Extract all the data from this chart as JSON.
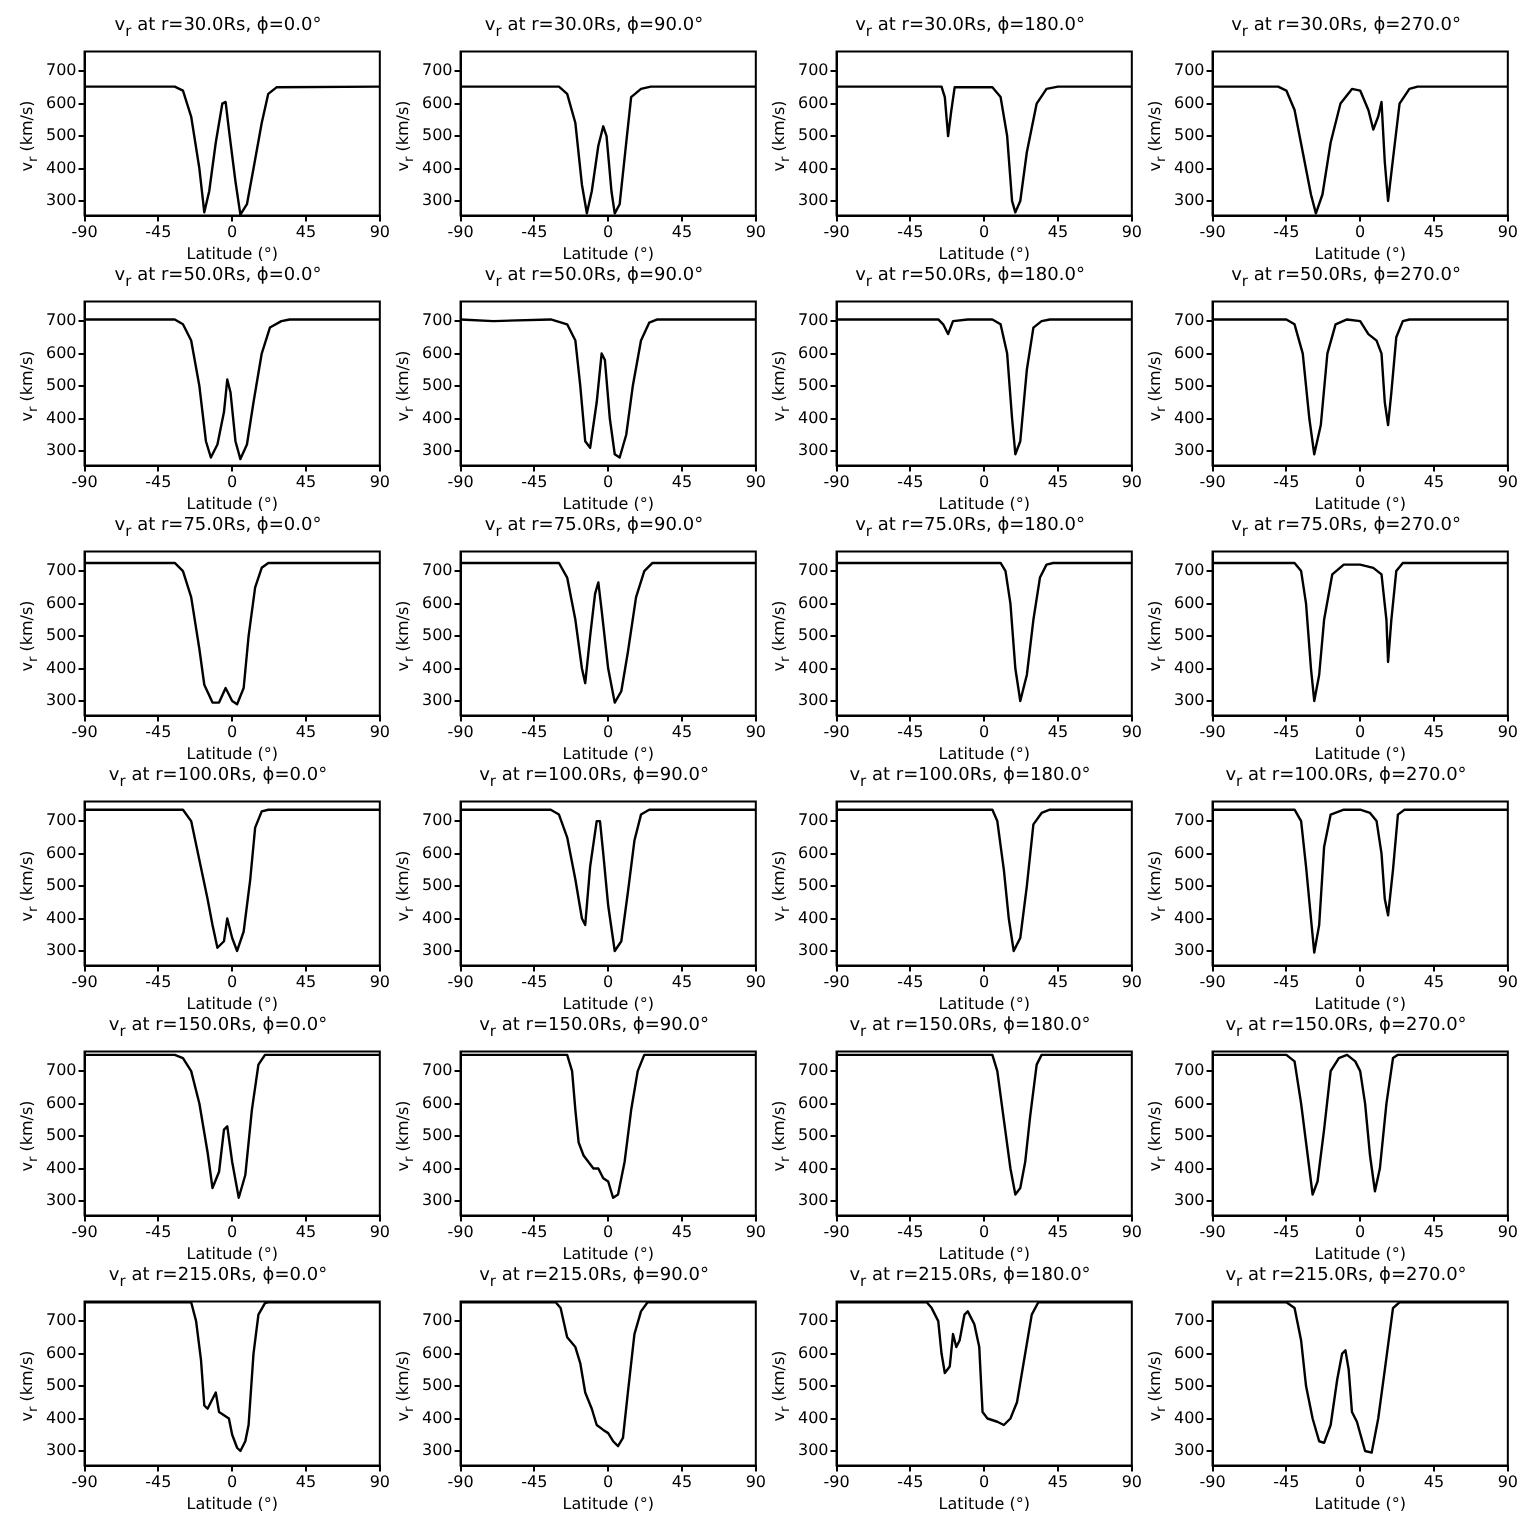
{
  "chart_data": [
    {
      "type": "line",
      "title": "v$_{r}$ at r=30.0Rs, ϕ=0.0°",
      "xlabel": "Latitude (°)",
      "ylabel": "v$_{r}$ (km/s)",
      "color": "#000000",
      "xlim": [
        -90,
        90
      ],
      "xticks": [
        -90,
        -45,
        0,
        45,
        90
      ],
      "ylim": [
        255,
        760
      ],
      "yticks": [
        300,
        400,
        500,
        600,
        700
      ],
      "x": [
        -90,
        -35,
        -30,
        -25,
        -20,
        -17,
        -14,
        -10,
        -6,
        -4,
        -2,
        2,
        5,
        9,
        13,
        18,
        22,
        27,
        90
      ],
      "values": [
        652,
        652,
        640,
        560,
        400,
        265,
        330,
        480,
        600,
        605,
        520,
        360,
        258,
        290,
        400,
        540,
        630,
        650,
        652
      ]
    },
    {
      "type": "line",
      "title": "v$_{r}$ at r=30.0Rs, ϕ=90.0°",
      "xlabel": "Latitude (°)",
      "ylabel": "v$_{r}$ (km/s)",
      "color": "#000000",
      "xlim": [
        -90,
        90
      ],
      "xticks": [
        -90,
        -45,
        0,
        45,
        90
      ],
      "ylim": [
        255,
        760
      ],
      "yticks": [
        300,
        400,
        500,
        600,
        700
      ],
      "x": [
        -90,
        -30,
        -25,
        -20,
        -16,
        -13,
        -10,
        -6,
        -3,
        -1,
        2,
        4,
        7,
        11,
        14,
        20,
        26,
        90
      ],
      "values": [
        652,
        652,
        630,
        540,
        350,
        262,
        330,
        470,
        530,
        500,
        330,
        262,
        290,
        480,
        620,
        645,
        652,
        652
      ]
    },
    {
      "type": "line",
      "title": "v$_{r}$ at r=30.0Rs, ϕ=180.0°",
      "xlabel": "Latitude (°)",
      "ylabel": "v$_{r}$ (km/s)",
      "color": "#000000",
      "xlim": [
        -90,
        90
      ],
      "xticks": [
        -90,
        -45,
        0,
        45,
        90
      ],
      "ylim": [
        255,
        760
      ],
      "yticks": [
        300,
        400,
        500,
        600,
        700
      ],
      "x": [
        -90,
        -26,
        -24,
        -22,
        -20,
        -18,
        5,
        10,
        14,
        17,
        19,
        22,
        26,
        32,
        38,
        45,
        90
      ],
      "values": [
        652,
        652,
        620,
        500,
        580,
        650,
        650,
        620,
        500,
        300,
        265,
        300,
        450,
        600,
        645,
        652,
        652
      ]
    },
    {
      "type": "line",
      "title": "v$_{r}$ at r=30.0Rs, ϕ=270.0°",
      "xlabel": "Latitude (°)",
      "ylabel": "v$_{r}$ (km/s)",
      "color": "#000000",
      "xlim": [
        -90,
        90
      ],
      "xticks": [
        -90,
        -45,
        0,
        45,
        90
      ],
      "ylim": [
        255,
        760
      ],
      "yticks": [
        300,
        400,
        500,
        600,
        700
      ],
      "x": [
        -90,
        -50,
        -45,
        -40,
        -35,
        -30,
        -27,
        -23,
        -18,
        -12,
        -5,
        0,
        5,
        8,
        11,
        13,
        15,
        17,
        20,
        24,
        30,
        35,
        90
      ],
      "values": [
        652,
        652,
        640,
        580,
        450,
        320,
        262,
        320,
        480,
        600,
        645,
        640,
        580,
        520,
        560,
        605,
        420,
        300,
        430,
        600,
        645,
        652,
        652
      ]
    },
    {
      "type": "line",
      "title": "v$_{r}$ at r=50.0Rs, ϕ=0.0°",
      "xlabel": "Latitude (°)",
      "ylabel": "v$_{r}$ (km/s)",
      "color": "#000000",
      "xlim": [
        -90,
        90
      ],
      "xticks": [
        -90,
        -45,
        0,
        45,
        90
      ],
      "ylim": [
        255,
        760
      ],
      "yticks": [
        300,
        400,
        500,
        600,
        700
      ],
      "x": [
        -90,
        -35,
        -30,
        -25,
        -20,
        -16,
        -13,
        -9,
        -5,
        -3,
        -1,
        2,
        5,
        9,
        13,
        18,
        23,
        30,
        35,
        90
      ],
      "values": [
        705,
        705,
        690,
        640,
        500,
        330,
        280,
        320,
        420,
        520,
        480,
        330,
        275,
        320,
        450,
        600,
        680,
        700,
        705,
        705
      ]
    },
    {
      "type": "line",
      "title": "v$_{r}$ at r=50.0Rs, ϕ=90.0°",
      "xlabel": "Latitude (°)",
      "ylabel": "v$_{r}$ (km/s)",
      "color": "#000000",
      "xlim": [
        -90,
        90
      ],
      "xticks": [
        -90,
        -45,
        0,
        45,
        90
      ],
      "ylim": [
        255,
        760
      ],
      "yticks": [
        300,
        400,
        500,
        600,
        700
      ],
      "x": [
        -90,
        -70,
        -35,
        -25,
        -20,
        -17,
        -14,
        -11,
        -7,
        -4,
        -2,
        1,
        4,
        7,
        11,
        15,
        20,
        25,
        30,
        90
      ],
      "values": [
        705,
        700,
        705,
        690,
        640,
        500,
        330,
        310,
        450,
        600,
        580,
        400,
        290,
        280,
        350,
        500,
        640,
        695,
        705,
        705
      ]
    },
    {
      "type": "line",
      "title": "v$_{r}$ at r=50.0Rs, ϕ=180.0°",
      "xlabel": "Latitude (°)",
      "ylabel": "v$_{r}$ (km/s)",
      "color": "#000000",
      "xlim": [
        -90,
        90
      ],
      "xticks": [
        -90,
        -45,
        0,
        45,
        90
      ],
      "ylim": [
        255,
        760
      ],
      "yticks": [
        300,
        400,
        500,
        600,
        700
      ],
      "x": [
        -90,
        -28,
        -25,
        -22,
        -19,
        -10,
        5,
        10,
        14,
        17,
        19,
        22,
        26,
        30,
        35,
        40,
        90
      ],
      "values": [
        705,
        705,
        690,
        660,
        700,
        705,
        705,
        690,
        600,
        400,
        290,
        330,
        550,
        680,
        700,
        705,
        705
      ]
    },
    {
      "type": "line",
      "title": "v$_{r}$ at r=50.0Rs, ϕ=270.0°",
      "xlabel": "Latitude (°)",
      "ylabel": "v$_{r}$ (km/s)",
      "color": "#000000",
      "xlim": [
        -90,
        90
      ],
      "xticks": [
        -90,
        -45,
        0,
        45,
        90
      ],
      "ylim": [
        255,
        760
      ],
      "yticks": [
        300,
        400,
        500,
        600,
        700
      ],
      "x": [
        -90,
        -45,
        -40,
        -35,
        -31,
        -28,
        -24,
        -20,
        -15,
        -8,
        0,
        5,
        10,
        13,
        15,
        17,
        19,
        22,
        26,
        30,
        90
      ],
      "values": [
        705,
        705,
        690,
        600,
        400,
        290,
        380,
        600,
        690,
        705,
        700,
        660,
        640,
        600,
        450,
        380,
        480,
        650,
        700,
        705,
        705
      ]
    },
    {
      "type": "line",
      "title": "v$_{r}$ at r=75.0Rs, ϕ=0.0°",
      "xlabel": "Latitude (°)",
      "ylabel": "v$_{r}$ (km/s)",
      "color": "#000000",
      "xlim": [
        -90,
        90
      ],
      "xticks": [
        -90,
        -45,
        0,
        45,
        90
      ],
      "ylim": [
        255,
        760
      ],
      "yticks": [
        300,
        400,
        500,
        600,
        700
      ],
      "x": [
        -90,
        -35,
        -30,
        -25,
        -20,
        -17,
        -12,
        -8,
        -4,
        0,
        3,
        7,
        10,
        14,
        18,
        22,
        90
      ],
      "values": [
        725,
        725,
        700,
        620,
        460,
        350,
        295,
        295,
        340,
        300,
        290,
        340,
        500,
        650,
        710,
        725,
        725
      ]
    },
    {
      "type": "line",
      "title": "v$_{r}$ at r=75.0Rs, ϕ=90.0°",
      "xlabel": "Latitude (°)",
      "ylabel": "v$_{r}$ (km/s)",
      "color": "#000000",
      "xlim": [
        -90,
        90
      ],
      "xticks": [
        -90,
        -45,
        0,
        45,
        90
      ],
      "ylim": [
        255,
        760
      ],
      "yticks": [
        300,
        400,
        500,
        600,
        700
      ],
      "x": [
        -90,
        -30,
        -25,
        -20,
        -16,
        -14,
        -11,
        -8,
        -6,
        -4,
        0,
        4,
        8,
        12,
        17,
        22,
        27,
        90
      ],
      "values": [
        725,
        725,
        680,
        550,
        400,
        355,
        500,
        630,
        665,
        580,
        400,
        295,
        330,
        450,
        620,
        700,
        725,
        725
      ]
    },
    {
      "type": "line",
      "title": "v$_{r}$ at r=75.0Rs, ϕ=180.0°",
      "xlabel": "Latitude (°)",
      "ylabel": "v$_{r}$ (km/s)",
      "color": "#000000",
      "xlim": [
        -90,
        90
      ],
      "xticks": [
        -90,
        -45,
        0,
        45,
        90
      ],
      "ylim": [
        255,
        760
      ],
      "yticks": [
        300,
        400,
        500,
        600,
        700
      ],
      "x": [
        -90,
        10,
        13,
        16,
        19,
        22,
        26,
        30,
        34,
        38,
        42,
        90
      ],
      "values": [
        725,
        725,
        700,
        600,
        400,
        300,
        380,
        550,
        680,
        720,
        725,
        725
      ]
    },
    {
      "type": "line",
      "title": "v$_{r}$ at r=75.0Rs, ϕ=270.0°",
      "xlabel": "Latitude (°)",
      "ylabel": "v$_{r}$ (km/s)",
      "color": "#000000",
      "xlim": [
        -90,
        90
      ],
      "xticks": [
        -90,
        -45,
        0,
        45,
        90
      ],
      "ylim": [
        255,
        760
      ],
      "yticks": [
        300,
        400,
        500,
        600,
        700
      ],
      "x": [
        -90,
        -40,
        -36,
        -33,
        -30,
        -28,
        -25,
        -22,
        -17,
        -10,
        0,
        8,
        13,
        16,
        17,
        19,
        22,
        26,
        90
      ],
      "values": [
        725,
        725,
        700,
        600,
        400,
        300,
        380,
        550,
        690,
        720,
        720,
        710,
        690,
        550,
        420,
        550,
        700,
        725,
        725
      ]
    },
    {
      "type": "line",
      "title": "v$_{r}$ at r=100.0Rs, ϕ=0.0°",
      "xlabel": "Latitude (°)",
      "ylabel": "v$_{r}$ (km/s)",
      "color": "#000000",
      "xlim": [
        -90,
        90
      ],
      "xticks": [
        -90,
        -45,
        0,
        45,
        90
      ],
      "ylim": [
        255,
        760
      ],
      "yticks": [
        300,
        400,
        500,
        600,
        700
      ],
      "x": [
        -90,
        -30,
        -25,
        -20,
        -15,
        -12,
        -9,
        -5,
        -3,
        0,
        3,
        7,
        11,
        14,
        18,
        22,
        90
      ],
      "values": [
        735,
        735,
        700,
        580,
        460,
        380,
        310,
        330,
        400,
        340,
        300,
        360,
        520,
        680,
        730,
        735,
        735
      ]
    },
    {
      "type": "line",
      "title": "v$_{r}$ at r=100.0Rs, ϕ=90.0°",
      "xlabel": "Latitude (°)",
      "ylabel": "v$_{r}$ (km/s)",
      "color": "#000000",
      "xlim": [
        -90,
        90
      ],
      "xticks": [
        -90,
        -45,
        0,
        45,
        90
      ],
      "ylim": [
        255,
        760
      ],
      "yticks": [
        300,
        400,
        500,
        600,
        700
      ],
      "x": [
        -90,
        -35,
        -30,
        -25,
        -20,
        -16,
        -14,
        -11,
        -7,
        -5,
        -3,
        0,
        4,
        8,
        12,
        16,
        20,
        25,
        90
      ],
      "values": [
        735,
        735,
        720,
        650,
        520,
        400,
        380,
        560,
        700,
        700,
        600,
        440,
        300,
        330,
        480,
        640,
        720,
        735,
        735
      ]
    },
    {
      "type": "line",
      "title": "v$_{r}$ at r=100.0Rs, ϕ=180.0°",
      "xlabel": "Latitude (°)",
      "ylabel": "v$_{r}$ (km/s)",
      "color": "#000000",
      "xlim": [
        -90,
        90
      ],
      "xticks": [
        -90,
        -45,
        0,
        45,
        90
      ],
      "ylim": [
        255,
        760
      ],
      "yticks": [
        300,
        400,
        500,
        600,
        700
      ],
      "x": [
        -90,
        5,
        8,
        12,
        15,
        18,
        22,
        26,
        30,
        35,
        40,
        90
      ],
      "values": [
        735,
        735,
        700,
        550,
        400,
        300,
        340,
        500,
        690,
        725,
        735,
        735
      ]
    },
    {
      "type": "line",
      "title": "v$_{r}$ at r=100.0Rs, ϕ=270.0°",
      "xlabel": "Latitude (°)",
      "ylabel": "v$_{r}$ (km/s)",
      "color": "#000000",
      "xlim": [
        -90,
        90
      ],
      "xticks": [
        -90,
        -45,
        0,
        45,
        90
      ],
      "ylim": [
        255,
        760
      ],
      "yticks": [
        300,
        400,
        500,
        600,
        700
      ],
      "x": [
        -90,
        -40,
        -36,
        -33,
        -30,
        -28,
        -25,
        -22,
        -18,
        -10,
        0,
        6,
        10,
        13,
        15,
        17,
        20,
        23,
        27,
        90
      ],
      "values": [
        735,
        735,
        700,
        560,
        400,
        295,
        380,
        620,
        720,
        735,
        735,
        725,
        700,
        600,
        460,
        410,
        550,
        720,
        735,
        735
      ]
    },
    {
      "type": "line",
      "title": "v$_{r}$ at r=150.0Rs, ϕ=0.0°",
      "xlabel": "Latitude (°)",
      "ylabel": "v$_{r}$ (km/s)",
      "color": "#000000",
      "xlim": [
        -90,
        90
      ],
      "xticks": [
        -90,
        -45,
        0,
        45,
        90
      ],
      "ylim": [
        255,
        760
      ],
      "yticks": [
        300,
        400,
        500,
        600,
        700
      ],
      "x": [
        -90,
        -35,
        -30,
        -25,
        -20,
        -15,
        -12,
        -8,
        -5,
        -3,
        0,
        4,
        8,
        12,
        16,
        20,
        90
      ],
      "values": [
        750,
        750,
        740,
        700,
        600,
        450,
        340,
        390,
        520,
        530,
        420,
        310,
        380,
        580,
        720,
        750,
        750
      ]
    },
    {
      "type": "line",
      "title": "v$_{r}$ at r=150.0Rs, ϕ=90.0°",
      "xlabel": "Latitude (°)",
      "ylabel": "v$_{r}$ (km/s)",
      "color": "#000000",
      "xlim": [
        -90,
        90
      ],
      "xticks": [
        -90,
        -45,
        0,
        45,
        90
      ],
      "ylim": [
        255,
        760
      ],
      "yticks": [
        300,
        400,
        500,
        600,
        700
      ],
      "x": [
        -90,
        -25,
        -22,
        -20,
        -18,
        -15,
        -12,
        -9,
        -6,
        -3,
        0,
        3,
        6,
        10,
        14,
        18,
        22,
        90
      ],
      "values": [
        750,
        750,
        700,
        580,
        480,
        440,
        420,
        400,
        400,
        370,
        360,
        310,
        320,
        420,
        580,
        700,
        750,
        750
      ]
    },
    {
      "type": "line",
      "title": "v$_{r}$ at r=150.0Rs, ϕ=180.0°",
      "xlabel": "Latitude (°)",
      "ylabel": "v$_{r}$ (km/s)",
      "color": "#000000",
      "xlim": [
        -90,
        90
      ],
      "xticks": [
        -90,
        -45,
        0,
        45,
        90
      ],
      "ylim": [
        255,
        760
      ],
      "yticks": [
        300,
        400,
        500,
        600,
        700
      ],
      "x": [
        -90,
        5,
        8,
        12,
        16,
        19,
        22,
        25,
        28,
        32,
        35,
        90
      ],
      "values": [
        750,
        750,
        700,
        550,
        400,
        320,
        340,
        420,
        560,
        720,
        750,
        750
      ]
    },
    {
      "type": "line",
      "title": "v$_{r}$ at r=150.0Rs, ϕ=270.0°",
      "xlabel": "Latitude (°)",
      "ylabel": "v$_{r}$ (km/s)",
      "color": "#000000",
      "xlim": [
        -90,
        90
      ],
      "xticks": [
        -90,
        -45,
        0,
        45,
        90
      ],
      "ylim": [
        255,
        760
      ],
      "yticks": [
        300,
        400,
        500,
        600,
        700
      ],
      "x": [
        -90,
        -45,
        -40,
        -36,
        -32,
        -29,
        -26,
        -22,
        -18,
        -13,
        -8,
        -3,
        0,
        3,
        6,
        9,
        12,
        16,
        20,
        23,
        90
      ],
      "values": [
        750,
        750,
        730,
        600,
        440,
        320,
        360,
        520,
        700,
        740,
        750,
        730,
        700,
        600,
        440,
        330,
        400,
        600,
        740,
        750,
        750
      ]
    },
    {
      "type": "line",
      "title": "v$_{r}$ at r=215.0Rs, ϕ=0.0°",
      "xlabel": "Latitude (°)",
      "ylabel": "v$_{r}$ (km/s)",
      "color": "#000000",
      "xlim": [
        -90,
        90
      ],
      "xticks": [
        -90,
        -45,
        0,
        45,
        90
      ],
      "ylim": [
        255,
        760
      ],
      "yticks": [
        300,
        400,
        500,
        600,
        700
      ],
      "x": [
        -90,
        -25,
        -22,
        -19,
        -17,
        -15,
        -12,
        -10,
        -8,
        -5,
        -2,
        0,
        3,
        5,
        8,
        10,
        13,
        16,
        20,
        22,
        90
      ],
      "values": [
        758,
        758,
        700,
        580,
        440,
        430,
        460,
        480,
        420,
        410,
        400,
        350,
        310,
        300,
        330,
        380,
        600,
        720,
        755,
        758,
        758
      ]
    },
    {
      "type": "line",
      "title": "v$_{r}$ at r=215.0Rs, ϕ=90.0°",
      "xlabel": "Latitude (°)",
      "ylabel": "v$_{r}$ (km/s)",
      "color": "#000000",
      "xlim": [
        -90,
        90
      ],
      "xticks": [
        -90,
        -45,
        0,
        45,
        90
      ],
      "ylim": [
        255,
        760
      ],
      "yticks": [
        300,
        400,
        500,
        600,
        700
      ],
      "x": [
        -90,
        -32,
        -29,
        -25,
        -20,
        -17,
        -14,
        -10,
        -7,
        -3,
        0,
        3,
        6,
        9,
        12,
        16,
        20,
        24,
        90
      ],
      "values": [
        758,
        758,
        740,
        650,
        620,
        570,
        480,
        430,
        380,
        365,
        355,
        330,
        315,
        340,
        480,
        660,
        730,
        758,
        758
      ]
    },
    {
      "type": "line",
      "title": "v$_{r}$ at r=215.0Rs, ϕ=180.0°",
      "xlabel": "Latitude (°)",
      "ylabel": "v$_{r}$ (km/s)",
      "color": "#000000",
      "xlim": [
        -90,
        90
      ],
      "xticks": [
        -90,
        -45,
        0,
        45,
        90
      ],
      "ylim": [
        255,
        760
      ],
      "yticks": [
        300,
        400,
        500,
        600,
        700
      ],
      "x": [
        -90,
        -35,
        -32,
        -28,
        -26,
        -24,
        -21,
        -19,
        -17,
        -15,
        -12,
        -10,
        -6,
        -3,
        -1,
        2,
        8,
        12,
        16,
        20,
        25,
        29,
        33,
        90
      ],
      "values": [
        758,
        758,
        740,
        700,
        600,
        540,
        560,
        660,
        620,
        640,
        720,
        730,
        690,
        620,
        420,
        400,
        390,
        380,
        400,
        450,
        600,
        720,
        758,
        758
      ]
    },
    {
      "type": "line",
      "title": "v$_{r}$ at r=215.0Rs, ϕ=270.0°",
      "xlabel": "Latitude (°)",
      "ylabel": "v$_{r}$ (km/s)",
      "color": "#000000",
      "xlim": [
        -90,
        90
      ],
      "xticks": [
        -90,
        -45,
        0,
        45,
        90
      ],
      "ylim": [
        255,
        760
      ],
      "yticks": [
        300,
        400,
        500,
        600,
        700
      ],
      "x": [
        -90,
        -45,
        -40,
        -36,
        -33,
        -29,
        -25,
        -22,
        -18,
        -14,
        -11,
        -9,
        -7,
        -5,
        -2,
        3,
        7,
        11,
        15,
        20,
        24,
        90
      ],
      "values": [
        758,
        758,
        740,
        640,
        500,
        400,
        330,
        325,
        380,
        520,
        600,
        610,
        550,
        420,
        390,
        300,
        295,
        400,
        550,
        740,
        758,
        758
      ]
    }
  ]
}
